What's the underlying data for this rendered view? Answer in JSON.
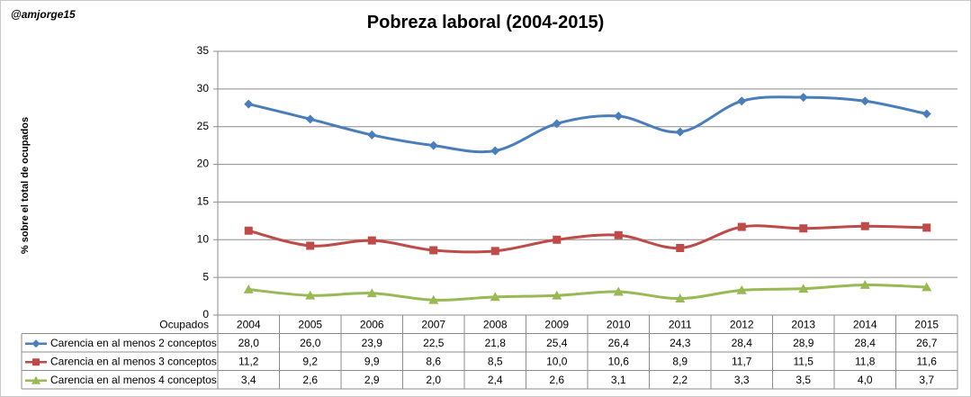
{
  "handle": "@amjorge15",
  "chart_data": {
    "type": "line",
    "title": "Pobreza laboral (2004-2015)",
    "ylabel": "% sobre el total de ocupados",
    "xlabel": "",
    "table_header": "Ocupados",
    "x": [
      "2004",
      "2005",
      "2006",
      "2007",
      "2008",
      "2009",
      "2010",
      "2011",
      "2012",
      "2013",
      "2014",
      "2015"
    ],
    "ylim": [
      0,
      35
    ],
    "yticks": [
      0,
      5,
      10,
      15,
      20,
      25,
      30,
      35
    ],
    "grid": true,
    "legend": "data-table",
    "series": [
      {
        "name": "Carencia en al menos 2 conceptos",
        "color": "#4a7ebb",
        "marker": "diamond",
        "values": [
          28.0,
          26.0,
          23.9,
          22.5,
          21.8,
          25.4,
          26.4,
          24.3,
          28.4,
          28.9,
          28.4,
          26.7
        ],
        "labels": [
          "28,0",
          "26,0",
          "23,9",
          "22,5",
          "21,8",
          "25,4",
          "26,4",
          "24,3",
          "28,4",
          "28,9",
          "28,4",
          "26,7"
        ]
      },
      {
        "name": "Carencia en al menos 3 conceptos",
        "color": "#be4b48",
        "marker": "square",
        "values": [
          11.2,
          9.2,
          9.9,
          8.6,
          8.5,
          10.0,
          10.6,
          8.9,
          11.7,
          11.5,
          11.8,
          11.6
        ],
        "labels": [
          "11,2",
          "9,2",
          "9,9",
          "8,6",
          "8,5",
          "10,0",
          "10,6",
          "8,9",
          "11,7",
          "11,5",
          "11,8",
          "11,6"
        ]
      },
      {
        "name": "Carencia en al menos 4 conceptos",
        "color": "#98b954",
        "marker": "triangle",
        "values": [
          3.4,
          2.6,
          2.9,
          2.0,
          2.4,
          2.6,
          3.1,
          2.2,
          3.3,
          3.5,
          4.0,
          3.7
        ],
        "labels": [
          "3,4",
          "2,6",
          "2,9",
          "2,0",
          "2,4",
          "2,6",
          "3,1",
          "2,2",
          "3,3",
          "3,5",
          "4,0",
          "3,7"
        ]
      }
    ]
  }
}
